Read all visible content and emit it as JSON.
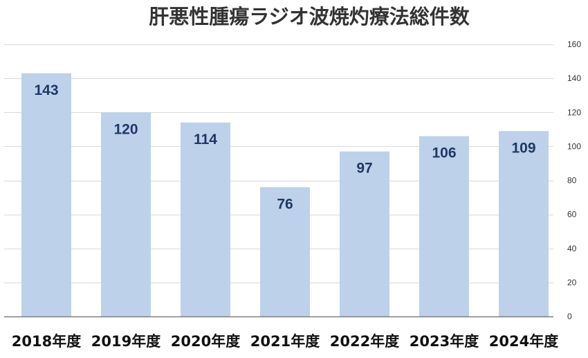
{
  "chart_data": {
    "type": "bar",
    "title": "肝悪性腫瘍ラジオ波焼灼療法総件数",
    "xlabel": "",
    "ylabel": "",
    "categories": [
      "2018年度",
      "2019年度",
      "2020年度",
      "2021年度",
      "2022年度",
      "2023年度",
      "2024年度"
    ],
    "values": [
      143,
      120,
      114,
      76,
      97,
      106,
      109
    ],
    "data_labels": [
      "143",
      "120",
      "114",
      "76",
      "97",
      "106",
      "109"
    ],
    "ylim": [
      0,
      160
    ],
    "yticks": [
      0,
      20,
      40,
      60,
      80,
      100,
      120,
      140,
      160
    ],
    "ytick_labels": [
      "0",
      "20",
      "40",
      "60",
      "80",
      "100",
      "120",
      "140",
      "160"
    ],
    "y_axis_side": "right",
    "grid": true,
    "legend": "none"
  },
  "colors": {
    "bar": "#bdd1eb",
    "data_label": "#1f3864",
    "grid": "#d9d9d9",
    "axis": "#7f7f7f"
  }
}
